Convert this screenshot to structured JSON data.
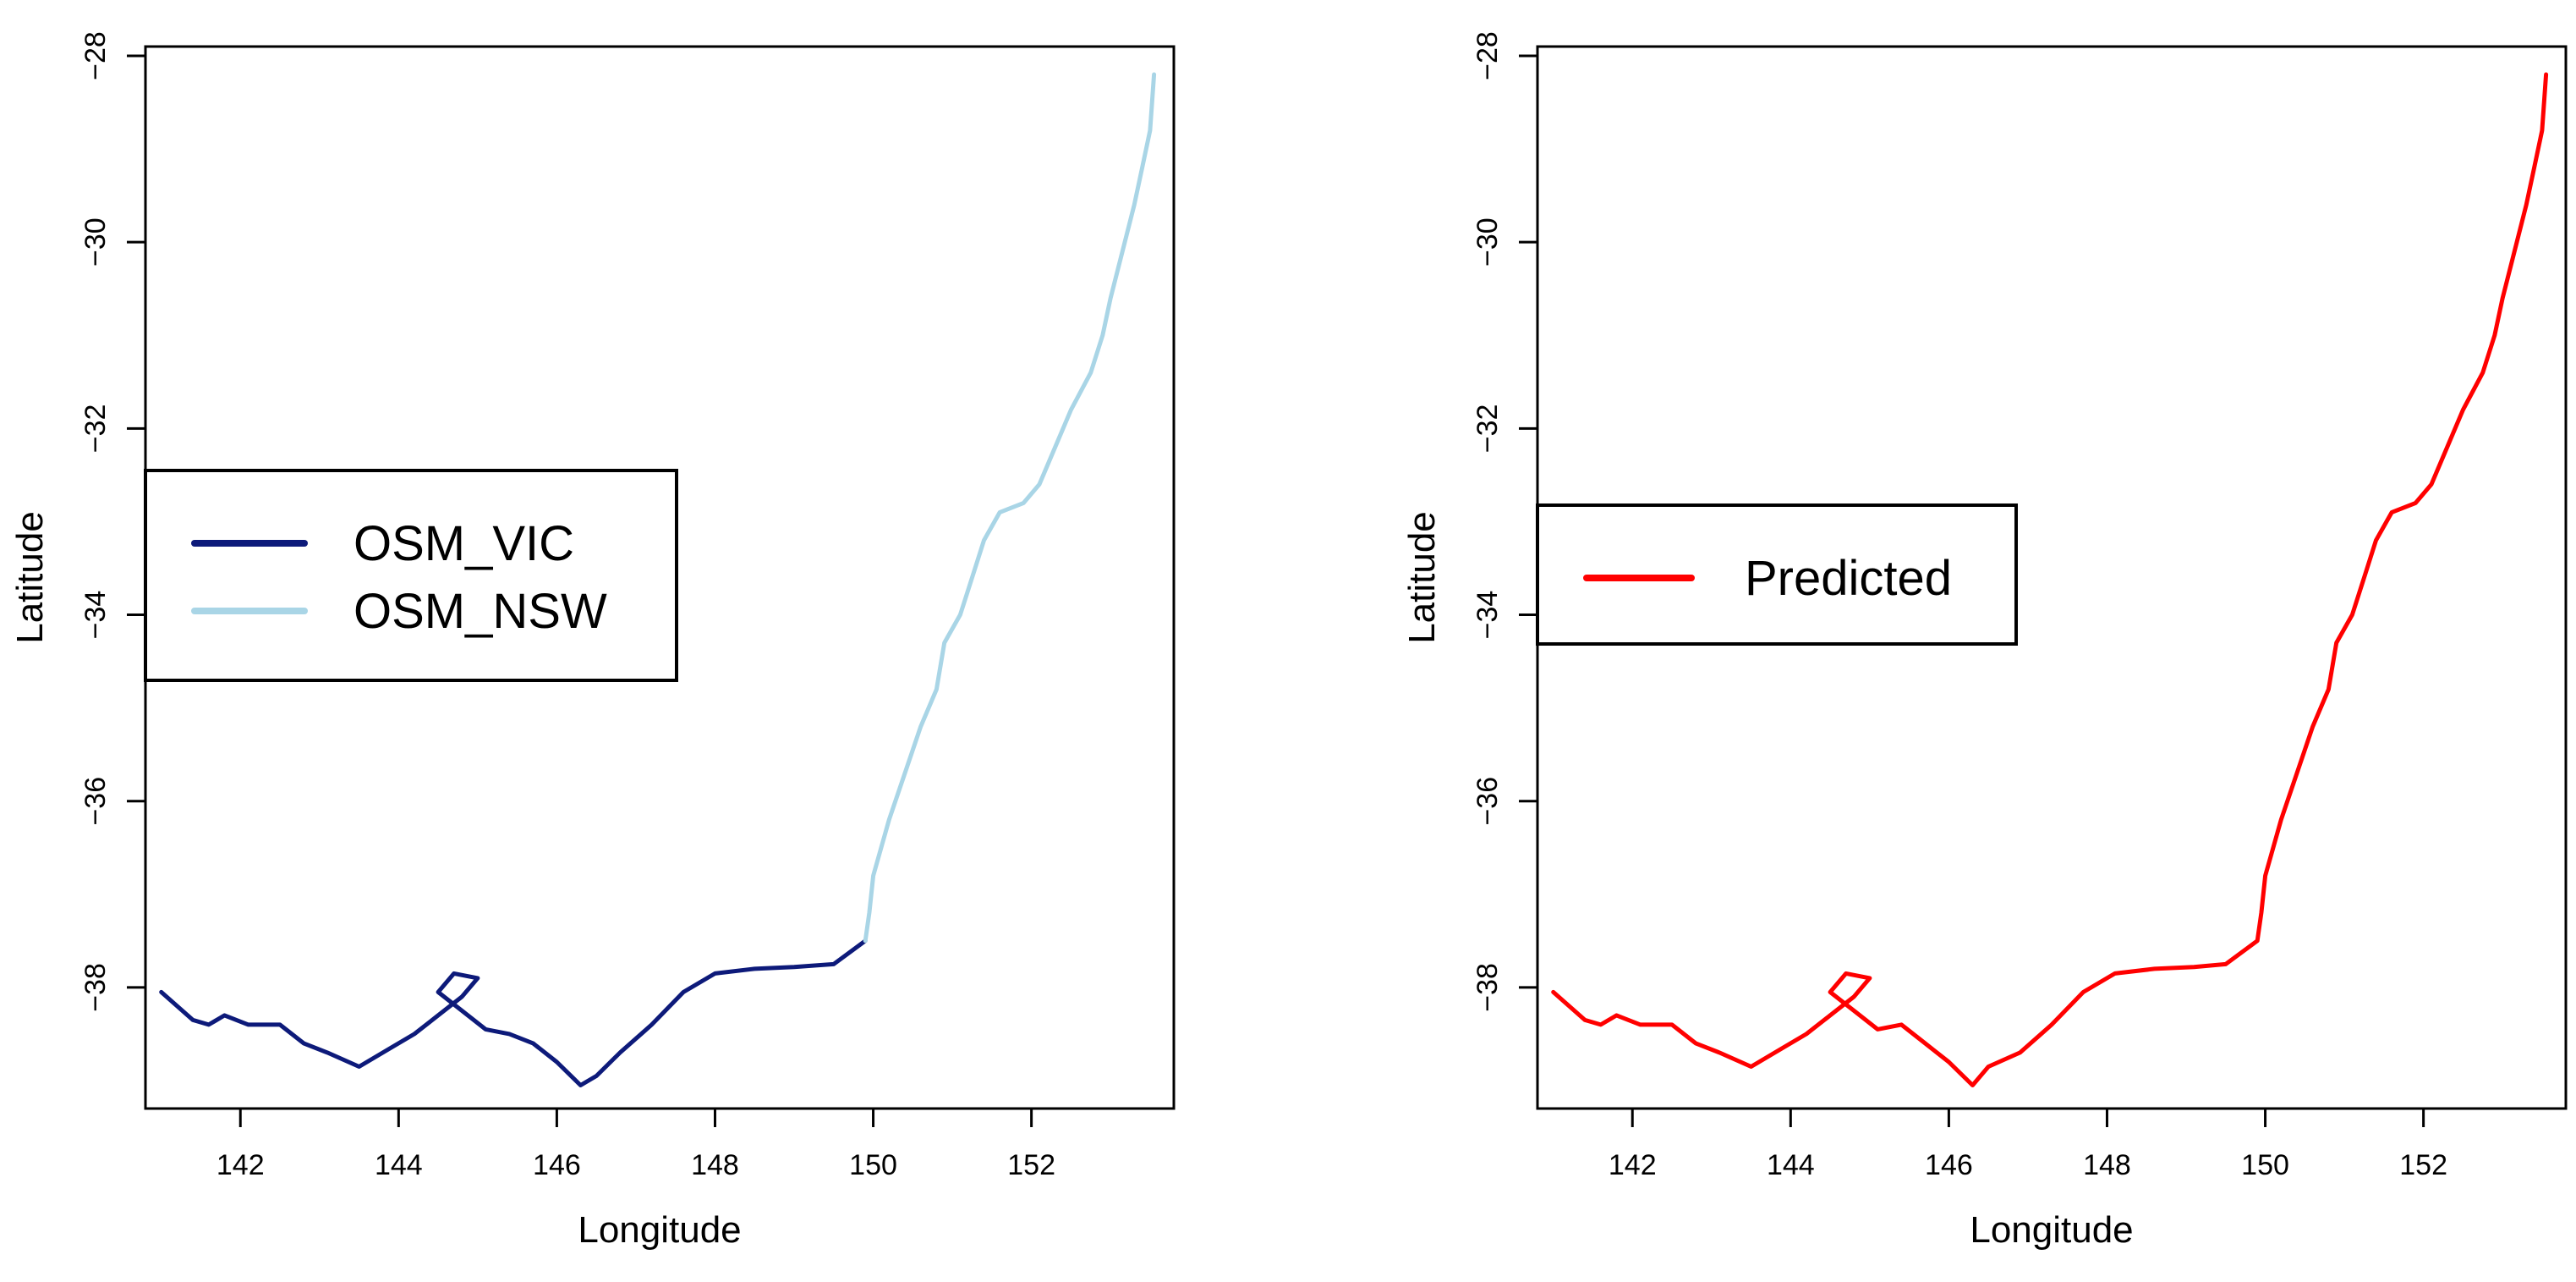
{
  "chart_data": [
    {
      "type": "line",
      "xlabel": "Longitude",
      "ylabel": "Latitude",
      "xlim": [
        140.8,
        153.8
      ],
      "ylim": [
        -39.3,
        -27.9
      ],
      "xticks": [
        142,
        144,
        146,
        148,
        150,
        152
      ],
      "yticks": [
        -28,
        -30,
        -32,
        -34,
        -36,
        -38
      ],
      "grid": false,
      "legend_position": "center-left",
      "series": [
        {
          "name": "OSM_VIC",
          "color": "#0d1a7a",
          "points": [
            [
              141.0,
              -38.05
            ],
            [
              141.4,
              -38.35
            ],
            [
              141.6,
              -38.4
            ],
            [
              141.8,
              -38.3
            ],
            [
              142.1,
              -38.4
            ],
            [
              142.5,
              -38.4
            ],
            [
              142.8,
              -38.6
            ],
            [
              143.1,
              -38.7
            ],
            [
              143.5,
              -38.85
            ],
            [
              143.9,
              -38.65
            ],
            [
              144.2,
              -38.5
            ],
            [
              144.5,
              -38.3
            ],
            [
              144.8,
              -38.1
            ],
            [
              145.0,
              -37.9
            ],
            [
              144.7,
              -37.85
            ],
            [
              144.5,
              -38.05
            ],
            [
              144.8,
              -38.25
            ],
            [
              145.1,
              -38.45
            ],
            [
              145.4,
              -38.5
            ],
            [
              145.7,
              -38.6
            ],
            [
              146.0,
              -38.8
            ],
            [
              146.3,
              -39.05
            ],
            [
              146.5,
              -38.95
            ],
            [
              146.8,
              -38.7
            ],
            [
              147.2,
              -38.4
            ],
            [
              147.6,
              -38.05
            ],
            [
              148.0,
              -37.85
            ],
            [
              148.5,
              -37.8
            ],
            [
              149.0,
              -37.78
            ],
            [
              149.5,
              -37.75
            ],
            [
              149.9,
              -37.5
            ]
          ]
        },
        {
          "name": "OSM_NSW",
          "color": "#a9d5e6",
          "points": [
            [
              149.9,
              -37.5
            ],
            [
              149.95,
              -37.2
            ],
            [
              150.0,
              -36.8
            ],
            [
              150.2,
              -36.2
            ],
            [
              150.4,
              -35.7
            ],
            [
              150.6,
              -35.2
            ],
            [
              150.8,
              -34.8
            ],
            [
              150.9,
              -34.3
            ],
            [
              151.1,
              -34.0
            ],
            [
              151.25,
              -33.6
            ],
            [
              151.4,
              -33.2
            ],
            [
              151.6,
              -32.9
            ],
            [
              151.9,
              -32.8
            ],
            [
              152.1,
              -32.6
            ],
            [
              152.3,
              -32.2
            ],
            [
              152.5,
              -31.8
            ],
            [
              152.75,
              -31.4
            ],
            [
              152.9,
              -31.0
            ],
            [
              153.0,
              -30.6
            ],
            [
              153.15,
              -30.1
            ],
            [
              153.3,
              -29.6
            ],
            [
              153.4,
              -29.2
            ],
            [
              153.5,
              -28.8
            ],
            [
              153.55,
              -28.2
            ]
          ]
        }
      ]
    },
    {
      "type": "line",
      "xlabel": "Longitude",
      "ylabel": "Latitude",
      "xlim": [
        140.8,
        153.8
      ],
      "ylim": [
        -39.3,
        -27.9
      ],
      "xticks": [
        142,
        144,
        146,
        148,
        150,
        152
      ],
      "yticks": [
        -28,
        -30,
        -32,
        -34,
        -36,
        -38
      ],
      "grid": false,
      "legend_position": "center-left",
      "series": [
        {
          "name": "Predicted",
          "color": "#ff0000",
          "points": [
            [
              141.0,
              -38.05
            ],
            [
              141.4,
              -38.35
            ],
            [
              141.6,
              -38.4
            ],
            [
              141.8,
              -38.3
            ],
            [
              142.1,
              -38.4
            ],
            [
              142.5,
              -38.4
            ],
            [
              142.8,
              -38.6
            ],
            [
              143.1,
              -38.7
            ],
            [
              143.5,
              -38.85
            ],
            [
              143.9,
              -38.65
            ],
            [
              144.2,
              -38.5
            ],
            [
              144.5,
              -38.3
            ],
            [
              144.8,
              -38.1
            ],
            [
              145.0,
              -37.9
            ],
            [
              144.7,
              -37.85
            ],
            [
              144.5,
              -38.05
            ],
            [
              144.8,
              -38.25
            ],
            [
              145.1,
              -38.45
            ],
            [
              145.4,
              -38.4
            ],
            [
              145.7,
              -38.6
            ],
            [
              146.0,
              -38.8
            ],
            [
              146.3,
              -39.05
            ],
            [
              146.5,
              -38.85
            ],
            [
              146.9,
              -38.7
            ],
            [
              147.3,
              -38.4
            ],
            [
              147.7,
              -38.05
            ],
            [
              148.1,
              -37.85
            ],
            [
              148.6,
              -37.8
            ],
            [
              149.1,
              -37.78
            ],
            [
              149.5,
              -37.75
            ],
            [
              149.9,
              -37.5
            ],
            [
              149.95,
              -37.2
            ],
            [
              150.0,
              -36.8
            ],
            [
              150.2,
              -36.2
            ],
            [
              150.4,
              -35.7
            ],
            [
              150.6,
              -35.2
            ],
            [
              150.8,
              -34.8
            ],
            [
              150.9,
              -34.3
            ],
            [
              151.1,
              -34.0
            ],
            [
              151.25,
              -33.6
            ],
            [
              151.4,
              -33.2
            ],
            [
              151.6,
              -32.9
            ],
            [
              151.9,
              -32.8
            ],
            [
              152.1,
              -32.6
            ],
            [
              152.3,
              -32.2
            ],
            [
              152.5,
              -31.8
            ],
            [
              152.75,
              -31.4
            ],
            [
              152.9,
              -31.0
            ],
            [
              153.0,
              -30.6
            ],
            [
              153.15,
              -30.1
            ],
            [
              153.3,
              -29.6
            ],
            [
              153.4,
              -29.2
            ],
            [
              153.5,
              -28.8
            ],
            [
              153.55,
              -28.2
            ]
          ]
        }
      ]
    }
  ]
}
